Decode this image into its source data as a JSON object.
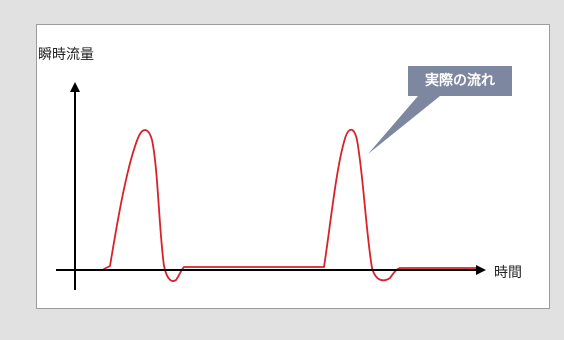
{
  "diagram": {
    "y_axis_label": "瞬時流量",
    "x_axis_label": "時間",
    "callout_label": "実際の流れ"
  },
  "colors": {
    "background": "#e1e1e1",
    "panel": "#ffffff",
    "curve": "#d8222a",
    "axis": "#000000",
    "callout": "#7d879f"
  }
}
